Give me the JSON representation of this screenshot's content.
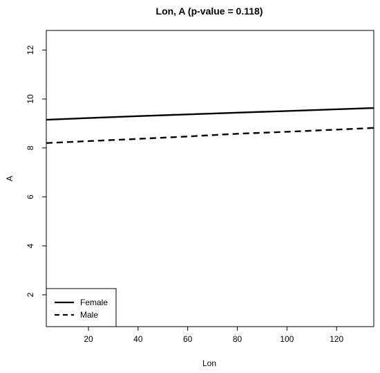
{
  "chart_data": {
    "type": "line",
    "title": "Lon, A (p-value = 0.118)",
    "xlabel": "Lon",
    "ylabel": "A",
    "xlim": [
      3,
      135
    ],
    "ylim": [
      0.7,
      12.8
    ],
    "xticks": [
      20,
      40,
      60,
      80,
      100,
      120
    ],
    "yticks": [
      2,
      4,
      6,
      8,
      10,
      12
    ],
    "grid": false,
    "legend_position": "bottom-left",
    "series": [
      {
        "name": "Female",
        "line_style": "solid",
        "color": "#000000",
        "x": [
          3,
          20,
          40,
          60,
          80,
          100,
          120,
          135
        ],
        "y": [
          9.15,
          9.22,
          9.3,
          9.37,
          9.44,
          9.51,
          9.58,
          9.63
        ]
      },
      {
        "name": "Male",
        "line_style": "dashed",
        "color": "#000000",
        "x": [
          3,
          20,
          40,
          60,
          80,
          100,
          120,
          135
        ],
        "y": [
          8.2,
          8.28,
          8.37,
          8.47,
          8.58,
          8.66,
          8.75,
          8.82
        ]
      }
    ]
  }
}
